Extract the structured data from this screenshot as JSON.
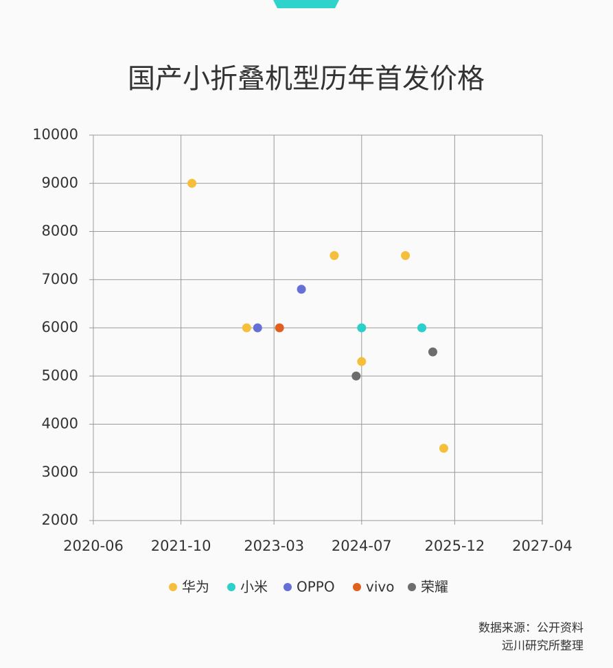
{
  "chart_data": {
    "type": "scatter",
    "title": "国产小折叠机型历年首发价格",
    "xlim": [
      "2020-06",
      "2027-04"
    ],
    "xticks": [
      "2020-06",
      "2021-10",
      "2023-03",
      "2024-07",
      "2025-12",
      "2027-04"
    ],
    "ylim": [
      2000,
      10000
    ],
    "yticks": [
      2000,
      3000,
      4000,
      5000,
      6000,
      7000,
      8000,
      9000,
      10000
    ],
    "grid": true,
    "series": [
      {
        "name": "华为",
        "color": "#f5bf3c",
        "x": [
          "2021-12",
          "2022-10",
          "2024-02",
          "2024-07",
          "2025-03",
          "2025-10"
        ],
        "values": [
          9000,
          6000,
          7500,
          5300,
          7500,
          3500
        ]
      },
      {
        "name": "小米",
        "color": "#2ccfc9",
        "x": [
          "2024-07",
          "2025-06"
        ],
        "values": [
          6000,
          6000
        ]
      },
      {
        "name": "OPPO",
        "color": "#6470d6",
        "x": [
          "2022-12",
          "2023-08"
        ],
        "values": [
          6000,
          6800
        ]
      },
      {
        "name": "vivo",
        "color": "#e0601f",
        "x": [
          "2023-04"
        ],
        "values": [
          6000
        ]
      },
      {
        "name": "荣耀",
        "color": "#6d6d6d",
        "x": [
          "2024-06",
          "2025-08"
        ],
        "values": [
          5000,
          5500
        ]
      }
    ],
    "source": [
      "数据来源：公开资料",
      "远川研究所整理"
    ]
  }
}
